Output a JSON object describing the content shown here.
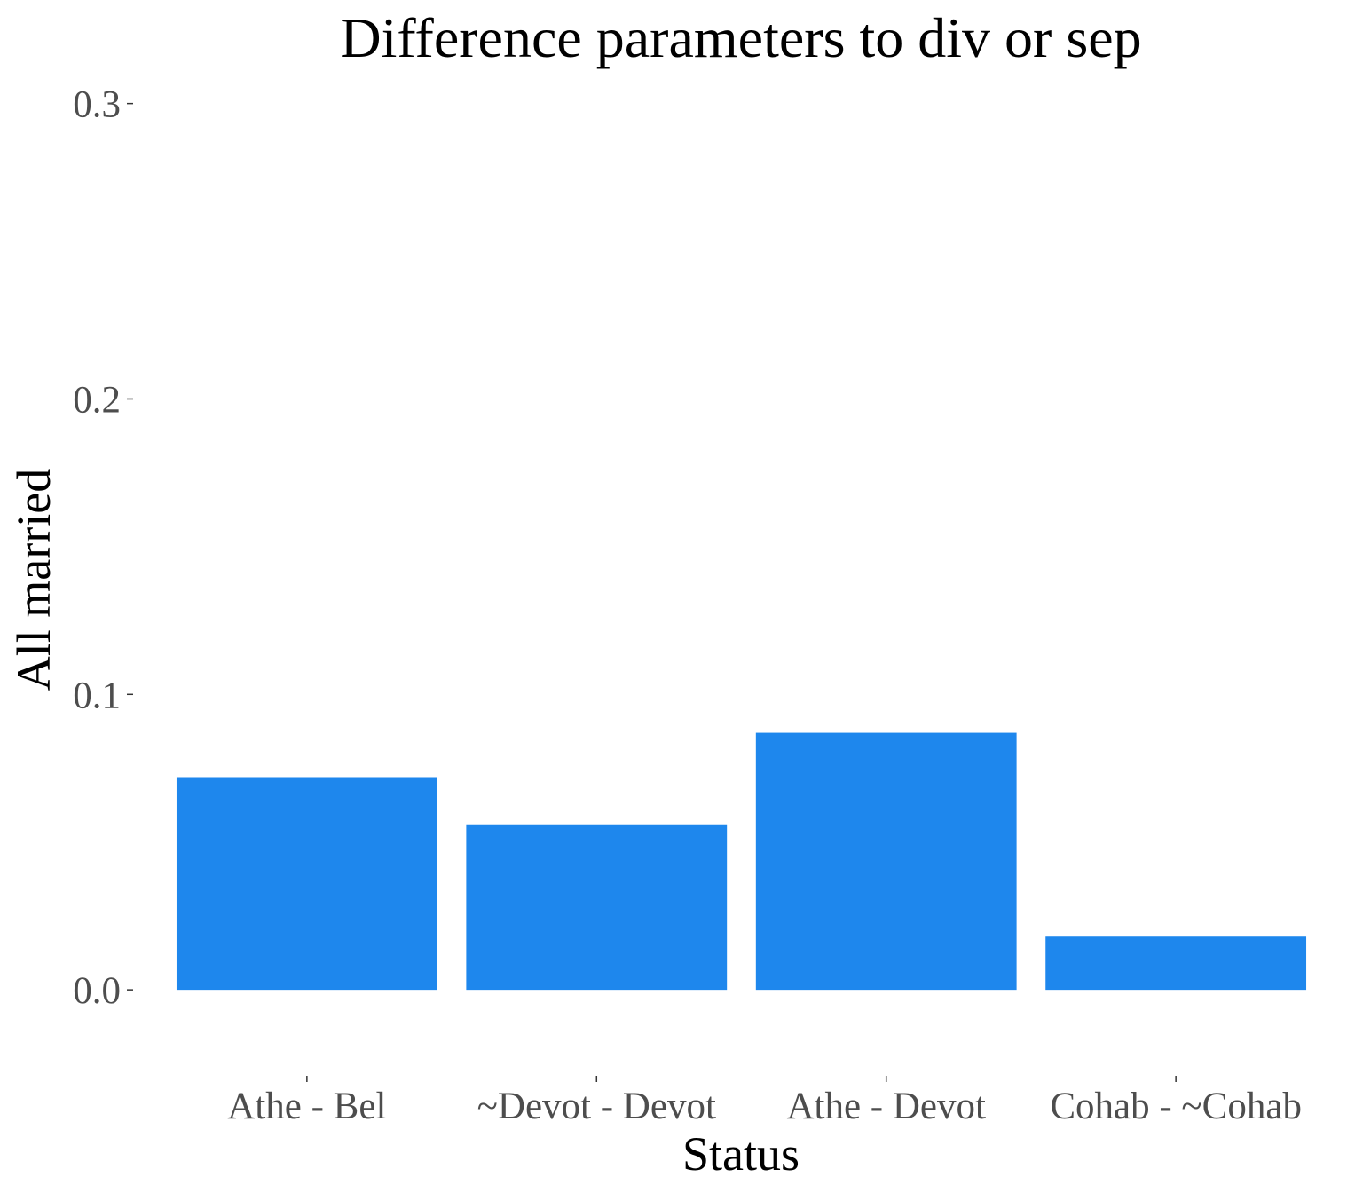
{
  "chart_data": {
    "type": "bar",
    "title": "Difference parameters to div or sep",
    "xlabel": "Status",
    "ylabel": "All married",
    "categories": [
      "Athe - Bel",
      "~Devot - Devot",
      "Athe - Devot",
      "Cohab - ~Cohab"
    ],
    "values": [
      0.072,
      0.056,
      0.087,
      0.018
    ],
    "ylim": [
      -0.027,
      0.305
    ],
    "yticks": [
      "0.0",
      "0.1",
      "0.2",
      "0.3"
    ],
    "bar_color": "#1e87ed",
    "grid": false,
    "legend": "none"
  }
}
